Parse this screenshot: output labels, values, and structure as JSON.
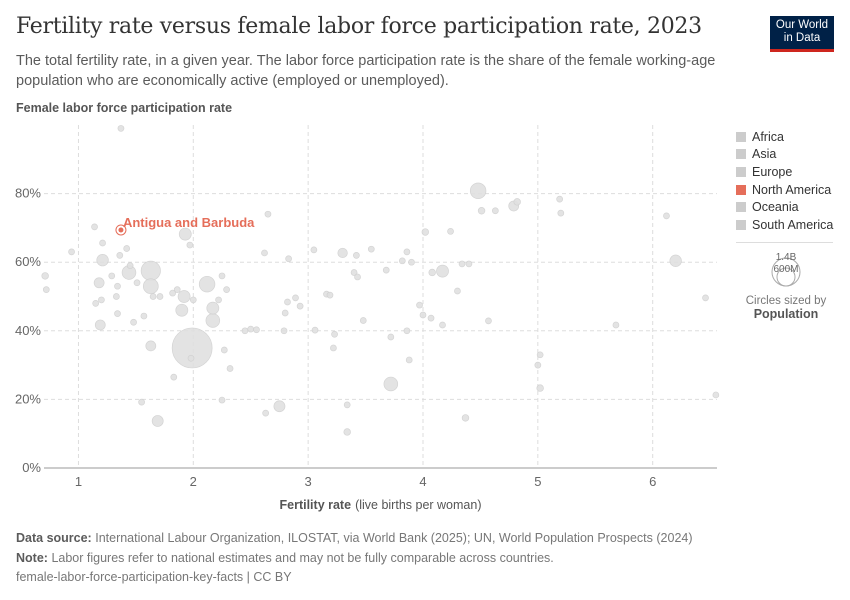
{
  "header": {
    "title": "Fertility rate versus female labor force participation rate, 2023",
    "subtitle": "The total fertility rate, in a given year. The labor force participation rate is the share of the female working-age population who are economically active (employed or unemployed).",
    "logo": "Our World in Data"
  },
  "legend": {
    "items": [
      {
        "label": "Africa",
        "color": "#cccccc"
      },
      {
        "label": "Asia",
        "color": "#cccccc"
      },
      {
        "label": "Europe",
        "color": "#cccccc"
      },
      {
        "label": "North America",
        "color": "#e56e5a"
      },
      {
        "label": "Oceania",
        "color": "#cccccc"
      },
      {
        "label": "South America",
        "color": "#cccccc"
      }
    ],
    "size_big": "1.4B",
    "size_small": "600M",
    "sized_by": "Circles sized by",
    "sized_by_var": "Population"
  },
  "footer": {
    "source_label": "Data source:",
    "source": "International Labour Organization, ILOSTAT, via World Bank (2025); UN, World Population Prospects (2024)",
    "note_label": "Note:",
    "note": "Labor figures refer to national estimates and may not be fully comparable across countries.",
    "slug": "female-labor-force-participation-key-facts | CC BY"
  },
  "chart_data": {
    "type": "scatter",
    "title": "Fertility rate versus female labor force participation rate, 2023",
    "xlabel": "Fertility rate",
    "xlabel_unit": "(live births per woman)",
    "ylabel": "Female labor force participation rate",
    "xlim": [
      0.7,
      6.56
    ],
    "ylim": [
      0,
      100
    ],
    "xticks": [
      1,
      2,
      3,
      4,
      5,
      6
    ],
    "yticks": [
      0,
      20,
      40,
      60,
      80
    ],
    "ytick_labels": [
      "0%",
      "20%",
      "40%",
      "60%",
      "80%"
    ],
    "grid": true,
    "legend_position": "right",
    "highlight": {
      "entity": "Antigua and Barbuda",
      "region": "North America",
      "x": 1.37,
      "y": 69.4,
      "pop": 0.09
    },
    "points": [
      [
        1.37,
        99,
        20
      ],
      [
        1.14,
        70.3,
        20
      ],
      [
        1.93,
        68.2,
        130
      ],
      [
        1.97,
        65,
        20
      ],
      [
        0.71,
        56,
        40
      ],
      [
        0.72,
        52,
        15
      ],
      [
        0.94,
        63,
        15
      ],
      [
        1.21,
        65.6,
        20
      ],
      [
        1.21,
        60.6,
        120
      ],
      [
        1.36,
        62,
        20
      ],
      [
        1.42,
        64,
        25
      ],
      [
        1.45,
        59,
        20
      ],
      [
        1.29,
        56,
        15
      ],
      [
        1.34,
        53,
        15
      ],
      [
        1.18,
        54,
        90
      ],
      [
        1.2,
        49,
        20
      ],
      [
        1.15,
        48,
        25
      ],
      [
        1.44,
        57,
        170
      ],
      [
        1.63,
        57.5,
        335
      ],
      [
        1.63,
        53,
        200
      ],
      [
        1.51,
        54,
        20
      ],
      [
        1.33,
        50,
        15
      ],
      [
        1.19,
        41.7,
        90
      ],
      [
        1.34,
        45,
        15
      ],
      [
        1.48,
        42.5,
        15
      ],
      [
        1.57,
        44.3,
        15
      ],
      [
        1.65,
        50,
        20
      ],
      [
        1.71,
        50,
        15
      ],
      [
        1.63,
        35.6,
        90
      ],
      [
        1.82,
        51,
        15
      ],
      [
        1.86,
        52,
        20
      ],
      [
        1.9,
        46,
        130
      ],
      [
        1.92,
        50,
        130
      ],
      [
        2.0,
        49,
        20
      ],
      [
        1.99,
        35,
        1430
      ],
      [
        1.98,
        32,
        20
      ],
      [
        2.12,
        53.6,
        220
      ],
      [
        2.17,
        46.6,
        130
      ],
      [
        2.17,
        43,
        170
      ],
      [
        2.22,
        49,
        25
      ],
      [
        2.25,
        56,
        20
      ],
      [
        2.29,
        52,
        15
      ],
      [
        2.27,
        34.4,
        20
      ],
      [
        2.32,
        29,
        15
      ],
      [
        1.83,
        26.5,
        15
      ],
      [
        1.69,
        13.7,
        110
      ],
      [
        1.55,
        19.2,
        15
      ],
      [
        2.25,
        19.8,
        20
      ],
      [
        2.75,
        18,
        110
      ],
      [
        2.63,
        16,
        15
      ],
      [
        2.45,
        40,
        15
      ],
      [
        2.5,
        40.5,
        15
      ],
      [
        2.55,
        40.3,
        15
      ],
      [
        2.79,
        40,
        20
      ],
      [
        2.62,
        62.7,
        15
      ],
      [
        2.65,
        74,
        15
      ],
      [
        2.83,
        61,
        15
      ],
      [
        2.82,
        48.4,
        15
      ],
      [
        2.8,
        45.2,
        15
      ],
      [
        2.89,
        49.6,
        15
      ],
      [
        2.93,
        47.2,
        15
      ],
      [
        3.05,
        63.6,
        20
      ],
      [
        3.06,
        40.2,
        30
      ],
      [
        3.16,
        50.7,
        15
      ],
      [
        3.19,
        50.4,
        15
      ],
      [
        3.23,
        39,
        15
      ],
      [
        3.22,
        35,
        15
      ],
      [
        3.3,
        62.7,
        80
      ],
      [
        3.34,
        18.4,
        15
      ],
      [
        3.34,
        10.5,
        40
      ],
      [
        3.4,
        57,
        20
      ],
      [
        3.43,
        55.7,
        15
      ],
      [
        3.42,
        62,
        30
      ],
      [
        3.48,
        43,
        15
      ],
      [
        3.55,
        63.8,
        20
      ],
      [
        3.68,
        57.7,
        20
      ],
      [
        3.72,
        24.5,
        170
      ],
      [
        3.72,
        38.2,
        15
      ],
      [
        3.82,
        60.4,
        15
      ],
      [
        3.86,
        63,
        20
      ],
      [
        3.86,
        40,
        20
      ],
      [
        3.88,
        31.5,
        15
      ],
      [
        3.9,
        60,
        15
      ],
      [
        3.97,
        47.5,
        15
      ],
      [
        4.02,
        68.8,
        40
      ],
      [
        4.0,
        44.6,
        15
      ],
      [
        4.07,
        43.7,
        15
      ],
      [
        4.17,
        41.7,
        15
      ],
      [
        4.17,
        57.4,
        130
      ],
      [
        4.08,
        57,
        40
      ],
      [
        4.24,
        69,
        15
      ],
      [
        4.34,
        59.5,
        15
      ],
      [
        4.3,
        51.6,
        15
      ],
      [
        4.4,
        59.5,
        25
      ],
      [
        4.48,
        80.8,
        220
      ],
      [
        4.51,
        75,
        40
      ],
      [
        4.63,
        75,
        15
      ],
      [
        4.57,
        42.9,
        15
      ],
      [
        4.37,
        14.6,
        40
      ],
      [
        4.79,
        76.4,
        90
      ],
      [
        4.82,
        77.6,
        40
      ],
      [
        5.02,
        33,
        15
      ],
      [
        5.02,
        23.3,
        40
      ],
      [
        5.0,
        30,
        15
      ],
      [
        5.19,
        78.4,
        15
      ],
      [
        5.2,
        74.3,
        30
      ],
      [
        5.68,
        41.7,
        15
      ],
      [
        6.12,
        73.5,
        20
      ],
      [
        6.2,
        60.4,
        120
      ],
      [
        6.46,
        49.6,
        15
      ],
      [
        6.55,
        21.3,
        15
      ]
    ]
  }
}
